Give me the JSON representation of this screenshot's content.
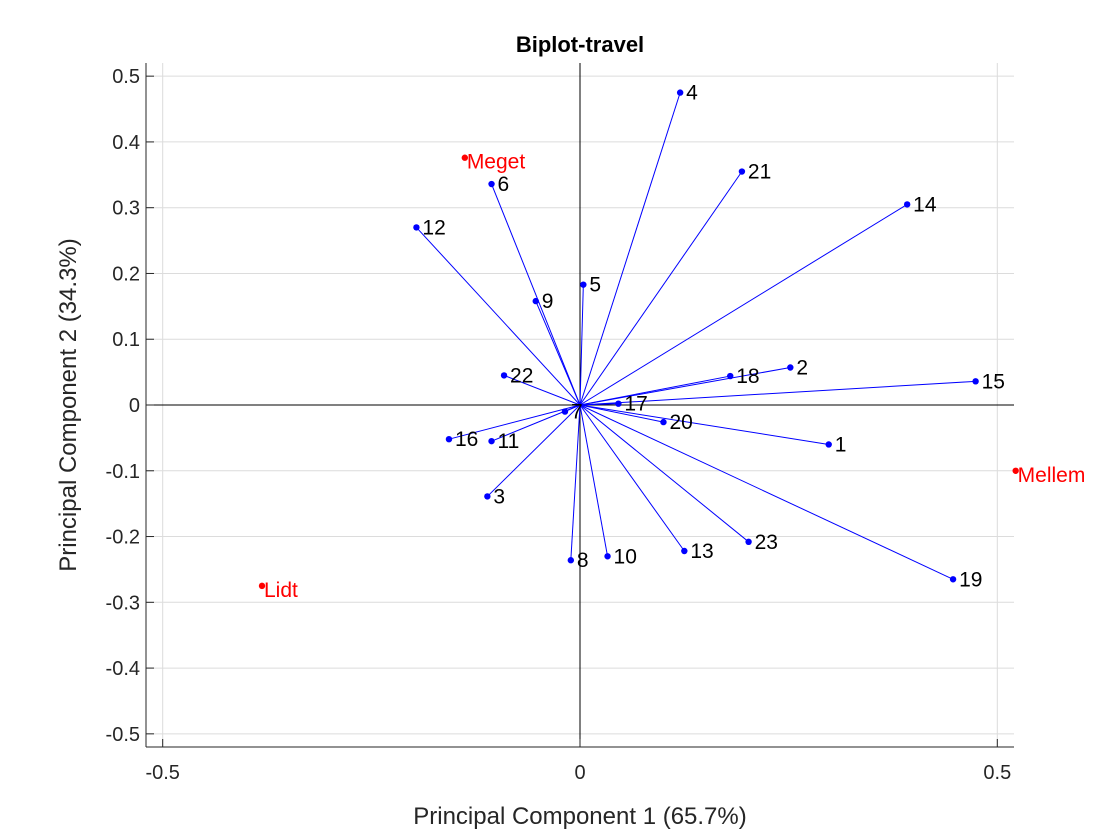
{
  "chart_data": {
    "type": "scatter",
    "subtype": "biplot",
    "title": "Biplot-travel",
    "xlabel": "Principal Component 1 (65.7%)",
    "ylabel": "Principal Component 2 (34.3%)",
    "xlim": [
      -0.52,
      0.52
    ],
    "ylim": [
      -0.52,
      0.52
    ],
    "xticks": [
      -0.5,
      0,
      0.5
    ],
    "xtick_labels": [
      "-0.5",
      "0",
      "0.5"
    ],
    "yticks": [
      0.5,
      0.4,
      0.3,
      0.2,
      0.1,
      0,
      -0.1,
      -0.2,
      -0.3,
      -0.4,
      -0.5
    ],
    "ytick_labels": [
      "0.5",
      "0.4",
      "0.3",
      "0.2",
      "0.1",
      "0",
      "-0.1",
      "-0.2",
      "-0.3",
      "-0.4",
      "-0.5"
    ],
    "grid": true,
    "colors": {
      "vector": "#0000ff",
      "variable": "#ff0000",
      "axis": "#000000"
    },
    "vectors": [
      {
        "label": "1",
        "x": 0.298,
        "y": -0.06
      },
      {
        "label": "2",
        "x": 0.252,
        "y": 0.057
      },
      {
        "label": "3",
        "x": -0.111,
        "y": -0.139
      },
      {
        "label": "4",
        "x": 0.12,
        "y": 0.475
      },
      {
        "label": "5",
        "x": 0.004,
        "y": 0.183
      },
      {
        "label": "6",
        "x": -0.106,
        "y": 0.336
      },
      {
        "label": "7",
        "x": -0.018,
        "y": -0.01
      },
      {
        "label": "8",
        "x": -0.011,
        "y": -0.236
      },
      {
        "label": "9",
        "x": -0.053,
        "y": 0.158
      },
      {
        "label": "10",
        "x": 0.033,
        "y": -0.23
      },
      {
        "label": "11",
        "x": -0.106,
        "y": -0.055
      },
      {
        "label": "12",
        "x": -0.196,
        "y": 0.27
      },
      {
        "label": "13",
        "x": 0.125,
        "y": -0.222
      },
      {
        "label": "14",
        "x": 0.392,
        "y": 0.305
      },
      {
        "label": "15",
        "x": 0.474,
        "y": 0.036
      },
      {
        "label": "16",
        "x": -0.157,
        "y": -0.052
      },
      {
        "label": "17",
        "x": 0.046,
        "y": 0.002
      },
      {
        "label": "18",
        "x": 0.18,
        "y": 0.044
      },
      {
        "label": "19",
        "x": 0.447,
        "y": -0.265
      },
      {
        "label": "20",
        "x": 0.1,
        "y": -0.026
      },
      {
        "label": "21",
        "x": 0.194,
        "y": 0.355
      },
      {
        "label": "22",
        "x": -0.091,
        "y": 0.045
      },
      {
        "label": "23",
        "x": 0.202,
        "y": -0.208
      }
    ],
    "variables": [
      {
        "label": "Meget",
        "x": -0.138,
        "y": 0.376
      },
      {
        "label": "Mellem",
        "x": 0.522,
        "y": -0.1
      },
      {
        "label": "Lidt",
        "x": -0.381,
        "y": -0.275
      }
    ]
  }
}
